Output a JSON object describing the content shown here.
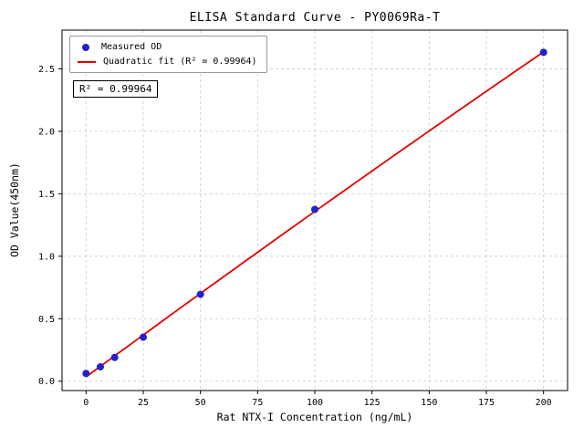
{
  "chart_data": {
    "type": "scatter",
    "title": "ELISA Standard Curve - PY0069Ra-T",
    "xlabel": "Rat NTX-I Concentration (ng/mL)",
    "ylabel": "OD Value(450nm)",
    "x": [
      0,
      6.25,
      12.5,
      25,
      50,
      100,
      200
    ],
    "y": [
      0.062,
      0.115,
      0.19,
      0.352,
      0.695,
      1.375,
      2.632
    ],
    "xlim": [
      -10.5,
      210.5
    ],
    "ylim": [
      -0.075,
      2.81
    ],
    "xticks": [
      0,
      25,
      50,
      75,
      100,
      125,
      150,
      175,
      200
    ],
    "yticks": [
      0.0,
      0.5,
      1.0,
      1.5,
      2.0,
      2.5
    ],
    "grid": true,
    "legend": [
      {
        "label": "Measured OD",
        "marker": "dot",
        "color": "#2222cc"
      },
      {
        "label": "Quadratic fit (R² = 0.99964)",
        "marker": "line",
        "color": "#e60000"
      }
    ],
    "annotation": "R² = 0.99964",
    "point_color": "#2222cc",
    "line_color": "#e60000",
    "grid_color": "#c9c9c9",
    "legend_position": "upper-left"
  }
}
